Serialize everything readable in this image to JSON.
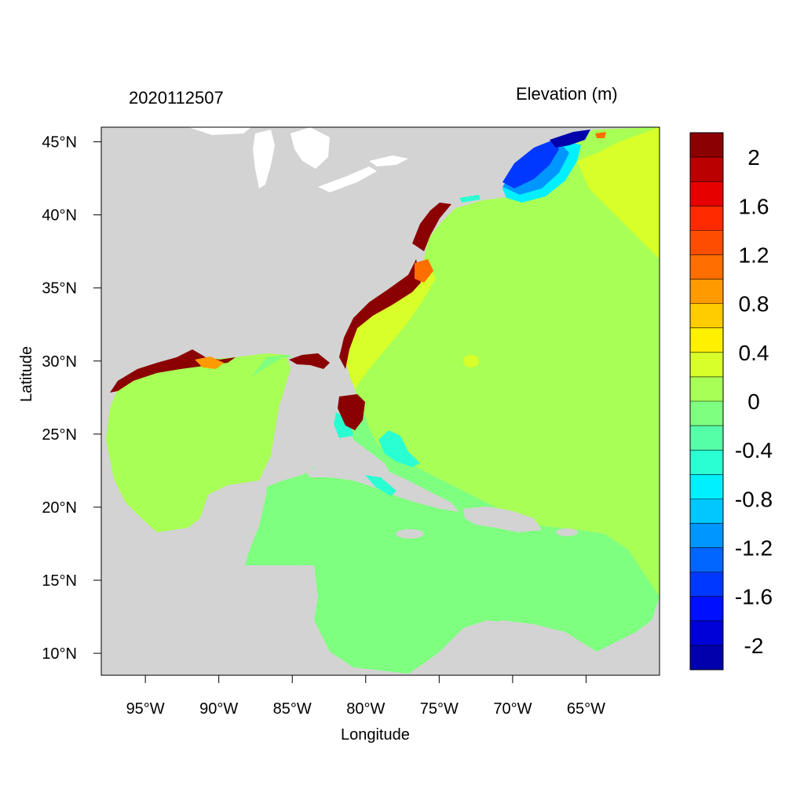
{
  "title_left": "2020112507",
  "title_right": "Elevation (m)",
  "xlabel": "Longitude",
  "ylabel": "Latitude",
  "map": {
    "lon_range": [
      -98,
      -60
    ],
    "lat_range": [
      8.5,
      46
    ],
    "x_ticks": [
      {
        "value": -95,
        "label": "95°W"
      },
      {
        "value": -90,
        "label": "90°W"
      },
      {
        "value": -85,
        "label": "85°W"
      },
      {
        "value": -80,
        "label": "80°W"
      },
      {
        "value": -75,
        "label": "75°W"
      },
      {
        "value": -70,
        "label": "70°W"
      },
      {
        "value": -65,
        "label": "65°W"
      }
    ],
    "y_ticks": [
      {
        "value": 45,
        "label": "45°N"
      },
      {
        "value": 40,
        "label": "40°N"
      },
      {
        "value": 35,
        "label": "35°N"
      },
      {
        "value": 30,
        "label": "30°N"
      },
      {
        "value": 25,
        "label": "25°N"
      },
      {
        "value": 20,
        "label": "20°N"
      },
      {
        "value": 15,
        "label": "15°N"
      },
      {
        "value": 10,
        "label": "10°N"
      }
    ],
    "colors": {
      "land": "#d3d3d3",
      "ocean_0_to_0_2": "#a8ff55",
      "caribbean_minus0_2_to_0": "#7fff7f",
      "surge_high": "#8b0000"
    }
  },
  "colorbar": {
    "levels": [
      2.2,
      2,
      1.8,
      1.6,
      1.4,
      1.2,
      1,
      0.8,
      0.6,
      0.4,
      0.2,
      0,
      -0.2,
      -0.4,
      -0.6,
      -0.8,
      -1,
      -1.2,
      -1.4,
      -1.6,
      -1.8,
      -2,
      -2.2
    ],
    "colors": [
      "#8b0000",
      "#bb0000",
      "#e60000",
      "#ff2a00",
      "#ff4d00",
      "#ff6e00",
      "#ff9a00",
      "#ffcc00",
      "#fff000",
      "#d8ff2a",
      "#a8ff55",
      "#7fff7f",
      "#55ffa8",
      "#2affd2",
      "#00f0ff",
      "#00c8ff",
      "#0096ff",
      "#0066ff",
      "#0038ff",
      "#0010ff",
      "#0000d8",
      "#0000ad"
    ],
    "labels": [
      {
        "value": 2,
        "label": "2"
      },
      {
        "value": 1.6,
        "label": "1.6"
      },
      {
        "value": 1.2,
        "label": "1.2"
      },
      {
        "value": 0.8,
        "label": "0.8"
      },
      {
        "value": 0.4,
        "label": "0.4"
      },
      {
        "value": 0,
        "label": "0"
      },
      {
        "value": -0.4,
        "label": "-0.4"
      },
      {
        "value": -0.8,
        "label": "-0.8"
      },
      {
        "value": -1.2,
        "label": "-1.2"
      },
      {
        "value": -1.6,
        "label": "-1.6"
      },
      {
        "value": -2,
        "label": "-2"
      }
    ]
  }
}
